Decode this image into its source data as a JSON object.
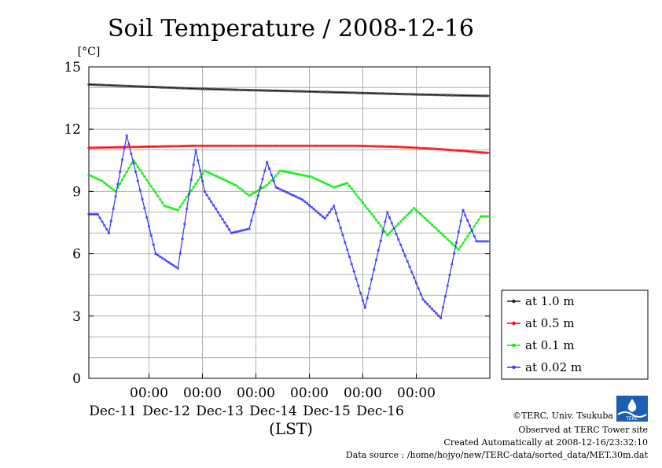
{
  "chart_data": {
    "type": "line",
    "title": "Soil Temperature / 2008-12-16",
    "y_unit": "[°C]",
    "xlabel": "(LST)",
    "ylim": [
      0,
      15
    ],
    "y_ticks": [
      0,
      3,
      6,
      9,
      12,
      15
    ],
    "x_ticks": [
      {
        "time": "00:00",
        "date": "Dec-11"
      },
      {
        "time": "00:00",
        "date": "Dec-12"
      },
      {
        "time": "00:00",
        "date": "Dec-13"
      },
      {
        "time": "00:00",
        "date": "Dec-14"
      },
      {
        "time": "00:00",
        "date": "Dec-15"
      },
      {
        "time": "00:00",
        "date": "Dec-16"
      }
    ],
    "x_range_hours": [
      "Dec-10 00:00",
      "Dec-16 00:00"
    ],
    "grid": true,
    "legend_position": "right-bottom",
    "series": [
      {
        "name": "at 1.0 m",
        "color": "#222222",
        "points": [
          [
            0,
            14.15
          ],
          [
            24,
            14.05
          ],
          [
            48,
            13.95
          ],
          [
            72,
            13.88
          ],
          [
            96,
            13.82
          ],
          [
            120,
            13.75
          ],
          [
            144,
            13.68
          ],
          [
            168,
            13.62
          ],
          [
            180,
            13.6
          ]
        ]
      },
      {
        "name": "at 0.5 m",
        "color": "#ff0000",
        "points": [
          [
            0,
            11.1
          ],
          [
            24,
            11.15
          ],
          [
            48,
            11.2
          ],
          [
            72,
            11.2
          ],
          [
            96,
            11.2
          ],
          [
            120,
            11.2
          ],
          [
            138,
            11.15
          ],
          [
            156,
            11.05
          ],
          [
            168,
            10.95
          ],
          [
            180,
            10.85
          ]
        ]
      },
      {
        "name": "at 0.1 m",
        "color": "#00ee00",
        "points": [
          [
            0,
            9.8
          ],
          [
            6,
            9.5
          ],
          [
            12,
            9.0
          ],
          [
            20,
            10.5
          ],
          [
            34,
            8.3
          ],
          [
            40,
            8.1
          ],
          [
            52,
            10.0
          ],
          [
            66,
            9.3
          ],
          [
            72,
            8.8
          ],
          [
            80,
            9.3
          ],
          [
            86,
            10.0
          ],
          [
            100,
            9.7
          ],
          [
            110,
            9.2
          ],
          [
            116,
            9.4
          ],
          [
            130,
            7.5
          ],
          [
            134,
            6.9
          ],
          [
            146,
            8.2
          ],
          [
            156,
            7.2
          ],
          [
            166,
            6.2
          ],
          [
            176,
            7.8
          ],
          [
            180,
            7.8
          ]
        ]
      },
      {
        "name": "at 0.02 m",
        "color": "#3333ff",
        "points": [
          [
            0,
            7.9
          ],
          [
            4,
            7.9
          ],
          [
            9,
            7.0
          ],
          [
            17,
            11.7
          ],
          [
            30,
            6.0
          ],
          [
            40,
            5.3
          ],
          [
            48,
            11.0
          ],
          [
            52,
            9.0
          ],
          [
            64,
            7.0
          ],
          [
            72,
            7.2
          ],
          [
            80,
            10.4
          ],
          [
            84,
            9.2
          ],
          [
            96,
            8.6
          ],
          [
            106,
            7.7
          ],
          [
            110,
            8.3
          ],
          [
            124,
            3.4
          ],
          [
            134,
            8.0
          ],
          [
            150,
            3.8
          ],
          [
            158,
            2.9
          ],
          [
            168,
            8.1
          ],
          [
            174,
            6.6
          ],
          [
            180,
            6.6
          ]
        ]
      }
    ]
  },
  "footer": {
    "credit": "©TERC, Univ. Tsukuba",
    "observed": "Observed at TERC Tower site",
    "created": "Created Automatically at 2008-12-16/23:32:10",
    "source": "Data source : /home/hojyo/new/TERC-data/sorted_data/MET.30m.dat",
    "logo_text": "TERC"
  }
}
